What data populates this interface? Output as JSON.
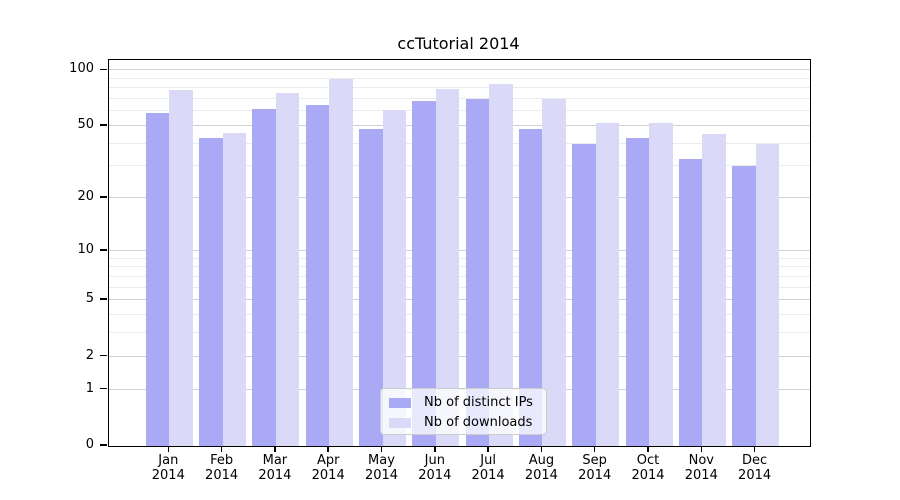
{
  "chart_data": {
    "type": "bar",
    "title": "ccTutorial 2014",
    "year": "2014",
    "categories": [
      "Jan",
      "Feb",
      "Mar",
      "Apr",
      "May",
      "Jun",
      "Jul",
      "Aug",
      "Sep",
      "Oct",
      "Nov",
      "Dec"
    ],
    "series": [
      {
        "name": "Nb of distinct IPs",
        "color": "#a9a9f5",
        "values": [
          59,
          43,
          62,
          65,
          48,
          68,
          70,
          48,
          40,
          43,
          33,
          30
        ]
      },
      {
        "name": "Nb of downloads",
        "color": "#dadaf8",
        "values": [
          78,
          46,
          75,
          90,
          61,
          79,
          84,
          70,
          52,
          52,
          45,
          40
        ]
      }
    ],
    "y_axis": {
      "scale": "log10(value+1)",
      "ticks": [
        100,
        50,
        20,
        10,
        5,
        2,
        1,
        0
      ],
      "minor_gridlines": [
        90,
        80,
        70,
        60,
        40,
        30,
        9,
        8,
        7,
        6,
        4,
        3
      ],
      "ylim": [
        0,
        113
      ]
    },
    "legend": {
      "position": "lower center"
    },
    "grid": "horizontal-only",
    "colors": {
      "major_grid": "#d0d0d0",
      "minor_grid": "#ebebeb",
      "spine": "#000000",
      "text": "#000000",
      "legend_border": "#cccccc"
    }
  }
}
